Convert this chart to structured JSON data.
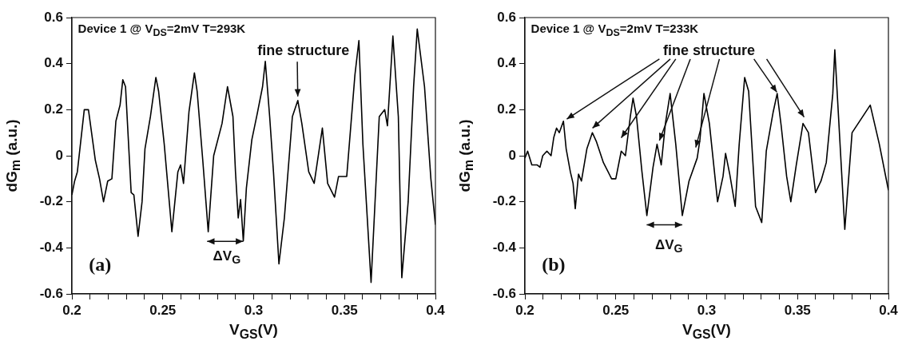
{
  "chart_data": [
    {
      "type": "line",
      "xlabel": "V$_{GS}$(V)",
      "ylabel": "dG$_{m}$ (a.u.)",
      "xlim": [
        0.2,
        0.4
      ],
      "ylim": [
        -0.6,
        0.6
      ],
      "xticks": [
        0.2,
        {
          "value": 0.21,
          "label": null
        },
        {
          "value": 0.22,
          "label": null
        },
        {
          "value": 0.23,
          "label": null
        },
        {
          "value": 0.24,
          "label": null
        },
        0.25,
        {
          "value": 0.26,
          "label": null
        },
        {
          "value": 0.27,
          "label": null
        },
        {
          "value": 0.28,
          "label": null
        },
        {
          "value": 0.29,
          "label": null
        },
        0.3,
        {
          "value": 0.31,
          "label": null
        },
        {
          "value": 0.32,
          "label": null
        },
        {
          "value": 0.33,
          "label": null
        },
        {
          "value": 0.34,
          "label": null
        },
        0.35,
        {
          "value": 0.36,
          "label": null
        },
        {
          "value": 0.37,
          "label": null
        },
        {
          "value": 0.38,
          "label": null
        },
        {
          "value": 0.39,
          "label": null
        },
        0.4
      ],
      "yticks": [
        -0.6,
        -0.4,
        -0.2,
        0,
        0.2,
        0.4,
        0.6
      ],
      "grid": false,
      "legend": false,
      "marker": "none",
      "line_style": "solid",
      "annotations": [
        "Device 1 @ V$_{DS}$=2mV T=293K",
        {
          "text": "fine structure",
          "x": 0.3243,
          "y": 0.24
        },
        "ΔV$_{G}$",
        "(a)"
      ],
      "series": [
        {
          "color": "#000000",
          "x": [
            0.2,
            0.2015,
            0.203,
            0.2068,
            0.2091,
            0.2129,
            0.2152,
            0.2174,
            0.2197,
            0.222,
            0.2242,
            0.2265,
            0.228,
            0.2295,
            0.2326,
            0.2341,
            0.2364,
            0.2386,
            0.2402,
            0.2432,
            0.2462,
            0.2477,
            0.2508,
            0.255,
            0.2583,
            0.2598,
            0.2614,
            0.2644,
            0.2674,
            0.2689,
            0.272,
            0.275,
            0.278,
            0.2826,
            0.2856,
            0.2886,
            0.29,
            0.2915,
            0.2928,
            0.2943,
            0.296,
            0.299,
            0.3019,
            0.3049,
            0.3064,
            0.3088,
            0.3109,
            0.3139,
            0.3169,
            0.3213,
            0.3243,
            0.3265,
            0.3303,
            0.3333,
            0.3378,
            0.3407,
            0.3445,
            0.3467,
            0.3512,
            0.3557,
            0.3579,
            0.3601,
            0.3646,
            0.3691,
            0.3721,
            0.3736,
            0.3766,
            0.3796,
            0.3815,
            0.385,
            0.388,
            0.39,
            0.394,
            0.3975,
            0.4
          ],
          "values": [
            -0.17,
            -0.11,
            -0.07,
            0.2,
            0.2,
            -0.02,
            -0.1,
            -0.2,
            -0.11,
            -0.1,
            0.15,
            0.22,
            0.33,
            0.3,
            -0.16,
            -0.17,
            -0.35,
            -0.2,
            0.03,
            0.17,
            0.34,
            0.28,
            0.05,
            -0.33,
            -0.07,
            -0.04,
            -0.12,
            0.19,
            0.36,
            0.28,
            -0.02,
            -0.33,
            0.0,
            0.14,
            0.3,
            0.17,
            -0.07,
            -0.27,
            -0.19,
            -0.37,
            -0.14,
            0.07,
            0.18,
            0.3,
            0.41,
            0.17,
            -0.07,
            -0.47,
            -0.27,
            0.17,
            0.24,
            0.14,
            -0.07,
            -0.12,
            0.12,
            -0.12,
            -0.18,
            -0.09,
            -0.09,
            0.35,
            0.5,
            0.05,
            -0.55,
            0.17,
            0.2,
            0.13,
            0.52,
            0.17,
            -0.53,
            -0.2,
            0.3,
            0.55,
            0.3,
            -0.1,
            -0.3
          ]
        }
      ]
    },
    {
      "type": "line",
      "xlabel": "V$_{GS}$(V)",
      "ylabel": "dG$_{m}$ (a.u.)",
      "xlim": [
        0.2,
        0.4
      ],
      "ylim": [
        -0.6,
        0.6
      ],
      "xticks": [
        0.2,
        {
          "value": 0.21,
          "label": null
        },
        {
          "value": 0.22,
          "label": null
        },
        {
          "value": 0.23,
          "label": null
        },
        {
          "value": 0.24,
          "label": null
        },
        0.25,
        {
          "value": 0.26,
          "label": null
        },
        {
          "value": 0.27,
          "label": null
        },
        {
          "value": 0.28,
          "label": null
        },
        {
          "value": 0.29,
          "label": null
        },
        0.3,
        {
          "value": 0.31,
          "label": null
        },
        {
          "value": 0.32,
          "label": null
        },
        {
          "value": 0.33,
          "label": null
        },
        {
          "value": 0.34,
          "label": null
        },
        0.35,
        {
          "value": 0.36,
          "label": null
        },
        {
          "value": 0.37,
          "label": null
        },
        {
          "value": 0.38,
          "label": null
        },
        {
          "value": 0.39,
          "label": null
        },
        0.4
      ],
      "yticks": [
        -0.6,
        -0.4,
        -0.2,
        0,
        0.2,
        0.4,
        0.6
      ],
      "grid": false,
      "legend": false,
      "marker": "none",
      "line_style": "solid",
      "annotations": [
        "Device 1 @ V$_{DS}$=2mV T=233K",
        {
          "text": "fine structure",
          "x": 0.2212,
          "y": 0.15
        },
        "ΔV$_{G}$",
        "(b)"
      ],
      "series": [
        {
          "color": "#000000",
          "x": [
            0.2,
            0.2015,
            0.2038,
            0.2068,
            0.2083,
            0.2098,
            0.2121,
            0.2144,
            0.2159,
            0.2174,
            0.2189,
            0.2212,
            0.2227,
            0.225,
            0.2265,
            0.2277,
            0.2295,
            0.2311,
            0.2341,
            0.2371,
            0.2394,
            0.2432,
            0.2477,
            0.25,
            0.253,
            0.2553,
            0.258,
            0.2595,
            0.2614,
            0.2644,
            0.2671,
            0.2705,
            0.2727,
            0.275,
            0.2773,
            0.2799,
            0.283,
            0.2866,
            0.2903,
            0.2948,
            0.2963,
            0.2985,
            0.3015,
            0.306,
            0.309,
            0.3104,
            0.3127,
            0.3157,
            0.3179,
            0.3209,
            0.3231,
            0.3269,
            0.3303,
            0.3328,
            0.3366,
            0.3388,
            0.341,
            0.344,
            0.3463,
            0.3493,
            0.353,
            0.356,
            0.3599,
            0.3629,
            0.3658,
            0.3694,
            0.3705,
            0.376,
            0.38,
            0.39,
            0.395,
            0.4
          ],
          "values": [
            -0.01,
            0.02,
            -0.04,
            -0.04,
            -0.05,
            0.0,
            0.02,
            0.0,
            0.08,
            0.12,
            0.1,
            0.15,
            0.03,
            -0.07,
            -0.12,
            -0.23,
            -0.08,
            -0.11,
            0.03,
            0.1,
            0.06,
            -0.03,
            -0.1,
            -0.1,
            0.02,
            0.0,
            0.17,
            0.25,
            0.17,
            -0.07,
            -0.26,
            -0.05,
            0.05,
            -0.04,
            0.14,
            0.27,
            0.05,
            -0.26,
            -0.11,
            -0.01,
            0.07,
            0.27,
            0.14,
            -0.2,
            -0.09,
            0.01,
            -0.08,
            -0.22,
            0.05,
            0.34,
            0.28,
            -0.22,
            -0.29,
            0.02,
            0.19,
            0.27,
            0.13,
            -0.09,
            -0.2,
            -0.04,
            0.14,
            0.1,
            -0.16,
            -0.11,
            -0.03,
            0.27,
            0.46,
            -0.32,
            0.1,
            0.22,
            0.05,
            -0.15
          ]
        }
      ]
    }
  ]
}
